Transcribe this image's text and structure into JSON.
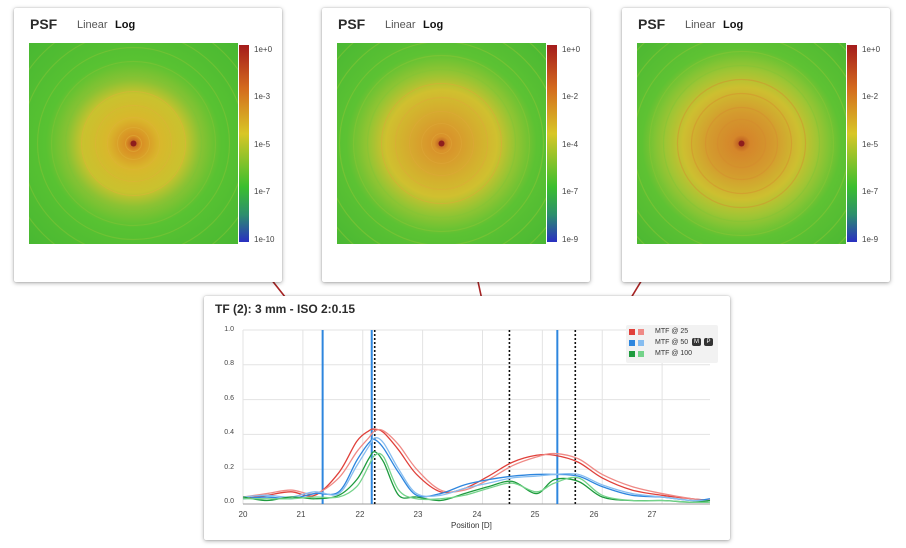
{
  "psf_panels": [
    {
      "title": "PSF",
      "tabs": [
        "Linear",
        "Log"
      ],
      "active_tab": "Log",
      "colorbar": [
        "1e+0",
        "1e-3",
        "1e-5",
        "1e-7",
        "1e-10"
      ]
    },
    {
      "title": "PSF",
      "tabs": [
        "Linear",
        "Log"
      ],
      "active_tab": "Log",
      "colorbar": [
        "1e+0",
        "1e-2",
        "1e-4",
        "1e-7",
        "1e-9"
      ]
    },
    {
      "title": "PSF",
      "tabs": [
        "Linear",
        "Log"
      ],
      "active_tab": "Log",
      "colorbar": [
        "1e+0",
        "1e-2",
        "1e-5",
        "1e-7",
        "1e-9"
      ]
    }
  ],
  "colors": {
    "mtf25": "#e0403a",
    "mtf25_light": "#ef8a86",
    "mtf50": "#2e86de",
    "mtf50_light": "#86bdf0",
    "mtf100": "#1e9b3e",
    "mtf100_light": "#74d38a",
    "arrow": "#a82424"
  },
  "chart_data": {
    "type": "line",
    "title": "TF (2): 3 mm - ISO 2:0.15",
    "xlabel": "Position [D]",
    "ylabel": "",
    "xlim": [
      20,
      27.8
    ],
    "ylim": [
      0,
      1.0
    ],
    "x_ticks": [
      "20",
      "21",
      "22",
      "23",
      "24",
      "25",
      "26",
      "27"
    ],
    "y_ticks": [
      "0.0",
      "0.2",
      "0.4",
      "0.6",
      "0.8",
      "1.0"
    ],
    "legend": [
      {
        "label": "MTF @ 25",
        "badges": []
      },
      {
        "label": "MTF @ 50",
        "badges": [
          "M",
          "P"
        ]
      },
      {
        "label": "MTF @ 100",
        "badges": []
      }
    ],
    "blue_vlines": [
      21.33,
      22.15,
      25.25
    ],
    "dotted_vlines": [
      22.2,
      24.45,
      25.55
    ],
    "x": [
      20.0,
      20.4,
      20.8,
      21.2,
      21.6,
      21.9,
      22.1,
      22.2,
      22.35,
      22.6,
      22.9,
      23.3,
      23.7,
      24.1,
      24.5,
      24.9,
      25.2,
      25.6,
      26.0,
      26.5,
      27.0,
      27.5,
      27.8
    ],
    "series": [
      {
        "name": "MTF @ 25",
        "values": [
          0.03,
          0.05,
          0.07,
          0.05,
          0.18,
          0.36,
          0.42,
          0.43,
          0.41,
          0.31,
          0.17,
          0.07,
          0.09,
          0.16,
          0.24,
          0.28,
          0.28,
          0.24,
          0.15,
          0.08,
          0.05,
          0.03,
          0.02
        ]
      },
      {
        "name": "MTF @ 25 (alt)",
        "values": [
          0.04,
          0.06,
          0.08,
          0.06,
          0.15,
          0.3,
          0.38,
          0.42,
          0.42,
          0.34,
          0.2,
          0.08,
          0.08,
          0.14,
          0.22,
          0.27,
          0.29,
          0.26,
          0.17,
          0.1,
          0.06,
          0.03,
          0.02
        ]
      },
      {
        "name": "MTF @ 50",
        "values": [
          0.03,
          0.04,
          0.03,
          0.06,
          0.07,
          0.25,
          0.35,
          0.37,
          0.32,
          0.18,
          0.05,
          0.06,
          0.11,
          0.14,
          0.16,
          0.17,
          0.17,
          0.16,
          0.1,
          0.05,
          0.04,
          0.02,
          0.03
        ]
      },
      {
        "name": "MTF @ 50 (alt)",
        "values": [
          0.04,
          0.05,
          0.04,
          0.07,
          0.06,
          0.22,
          0.33,
          0.38,
          0.35,
          0.2,
          0.06,
          0.05,
          0.09,
          0.12,
          0.15,
          0.16,
          0.17,
          0.17,
          0.11,
          0.06,
          0.04,
          0.02,
          0.02
        ]
      },
      {
        "name": "MTF @ 100",
        "values": [
          0.04,
          0.02,
          0.04,
          0.03,
          0.05,
          0.14,
          0.26,
          0.3,
          0.24,
          0.05,
          0.04,
          0.02,
          0.06,
          0.1,
          0.13,
          0.06,
          0.14,
          0.13,
          0.04,
          0.02,
          0.02,
          0.01,
          0.02
        ]
      },
      {
        "name": "MTF @ 100 (alt)",
        "values": [
          0.03,
          0.03,
          0.03,
          0.04,
          0.04,
          0.1,
          0.22,
          0.28,
          0.27,
          0.08,
          0.03,
          0.03,
          0.05,
          0.09,
          0.12,
          0.07,
          0.12,
          0.15,
          0.05,
          0.02,
          0.02,
          0.01,
          0.01
        ]
      }
    ]
  }
}
